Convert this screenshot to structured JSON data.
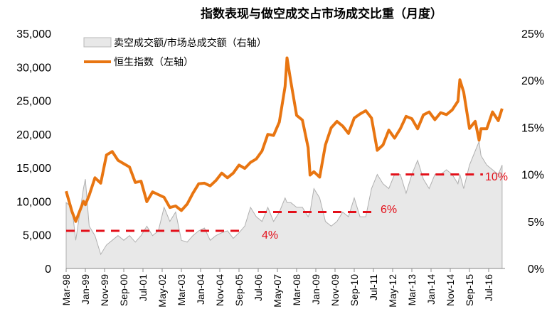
{
  "chart_data": {
    "type": "line",
    "title": "指数表现与做空成交占市场成交比重（月度）",
    "x_tick_labels": [
      "Mar-98",
      "Jan-99",
      "Nov-99",
      "Sep-00",
      "Jul-01",
      "May-02",
      "Mar-03",
      "Jan-04",
      "Nov-04",
      "Sep-05",
      "Jul-06",
      "May-07",
      "Mar-08",
      "Jan-09",
      "Nov-09",
      "Sep-10",
      "Jul-11",
      "May-12",
      "Mar-13",
      "Jan-14",
      "Nov-14",
      "Sep-15",
      "Jul-16"
    ],
    "y_left": {
      "range": [
        0,
        35000
      ],
      "ticks": [
        "0",
        "5,000",
        "10,000",
        "15,000",
        "20,000",
        "25,000",
        "30,000",
        "35,000"
      ]
    },
    "y_right": {
      "range": [
        0,
        25
      ],
      "ticks": [
        "0%",
        "5%",
        "10%",
        "15%",
        "20%",
        "25%"
      ]
    },
    "grid": false,
    "legend_position": "top-left",
    "x": [
      "1998-03",
      "1998-06",
      "1998-08",
      "1998-12",
      "1999-01",
      "1999-03",
      "1999-06",
      "1999-09",
      "1999-12",
      "2000-03",
      "2000-06",
      "2000-09",
      "2000-12",
      "2001-03",
      "2001-06",
      "2001-09",
      "2001-12",
      "2002-03",
      "2002-06",
      "2002-09",
      "2002-12",
      "2003-03",
      "2003-06",
      "2003-09",
      "2003-12",
      "2004-03",
      "2004-06",
      "2004-09",
      "2004-12",
      "2005-03",
      "2005-06",
      "2005-09",
      "2005-12",
      "2006-03",
      "2006-06",
      "2006-09",
      "2006-12",
      "2007-03",
      "2007-06",
      "2007-09",
      "2007-10",
      "2007-12",
      "2008-03",
      "2008-06",
      "2008-09",
      "2008-10",
      "2008-12",
      "2009-03",
      "2009-06",
      "2009-09",
      "2009-12",
      "2010-03",
      "2010-06",
      "2010-09",
      "2010-12",
      "2011-03",
      "2011-06",
      "2011-09",
      "2011-12",
      "2012-03",
      "2012-06",
      "2012-09",
      "2012-12",
      "2013-03",
      "2013-06",
      "2013-09",
      "2013-12",
      "2014-03",
      "2014-06",
      "2014-09",
      "2014-12",
      "2015-03",
      "2015-04",
      "2015-06",
      "2015-09",
      "2015-12",
      "2016-02",
      "2016-03",
      "2016-06",
      "2016-09",
      "2016-12",
      "2017-02"
    ],
    "series": [
      {
        "name": "卖空成交额/市场总成交额（右轴）",
        "type": "area",
        "axis": "right",
        "unit": "%",
        "color": "#e8e8e8",
        "line_color": "#b0b0b0",
        "values": [
          7,
          6.5,
          3,
          8.5,
          9.5,
          4.5,
          3.5,
          1.5,
          2.5,
          3,
          3.5,
          3,
          3.5,
          2.8,
          3.5,
          4.5,
          3.5,
          4,
          6.5,
          5,
          6,
          3,
          2.8,
          3.5,
          4,
          4.3,
          3,
          3.5,
          3.8,
          4,
          3.2,
          3.8,
          4.5,
          6.5,
          5.5,
          5,
          6.5,
          5,
          6,
          7.5,
          7,
          7,
          6.5,
          6.5,
          5.5,
          6,
          8.5,
          7.5,
          5,
          4.5,
          5,
          6,
          5.5,
          7.5,
          5.5,
          5.5,
          8.5,
          10,
          9,
          8.5,
          10,
          10,
          8,
          10,
          11.5,
          9.5,
          8.5,
          10,
          10,
          10.5,
          10,
          9,
          10,
          8.5,
          11,
          12.5,
          13.5,
          12,
          11,
          10.5,
          10,
          11
        ]
      },
      {
        "name": "恒生指数（左轴）",
        "type": "line",
        "axis": "left",
        "color": "#e87511",
        "values": [
          11500,
          8500,
          7000,
          10000,
          9500,
          10900,
          13500,
          12700,
          16900,
          17400,
          16100,
          15600,
          15100,
          12800,
          13000,
          9950,
          11400,
          11000,
          10600,
          9070,
          9300,
          8630,
          9580,
          11200,
          12600,
          12700,
          12300,
          13100,
          14200,
          13500,
          14200,
          15400,
          14900,
          15800,
          16300,
          17500,
          19960,
          19800,
          21800,
          27100,
          31350,
          27800,
          22800,
          22100,
          18000,
          13900,
          14400,
          13600,
          18400,
          20950,
          21900,
          21200,
          20100,
          22400,
          23000,
          23500,
          22400,
          17600,
          18400,
          20600,
          19400,
          20800,
          22650,
          22300,
          20800,
          22860,
          23300,
          22150,
          23200,
          22900,
          23600,
          24900,
          28100,
          26250,
          20850,
          21900,
          19100,
          20800,
          20800,
          23300,
          22000,
          23800
        ]
      }
    ],
    "reference_lines": [
      {
        "label": "4%",
        "value": 4,
        "from": "1998-03",
        "to": "2005-12"
      },
      {
        "label": "6%",
        "value": 6,
        "from": "2006-07",
        "to": "2011-08"
      },
      {
        "label": "10%",
        "value": 10,
        "from": "2012-04",
        "to": "2016-04"
      }
    ],
    "reference_color": "#e3101a"
  }
}
